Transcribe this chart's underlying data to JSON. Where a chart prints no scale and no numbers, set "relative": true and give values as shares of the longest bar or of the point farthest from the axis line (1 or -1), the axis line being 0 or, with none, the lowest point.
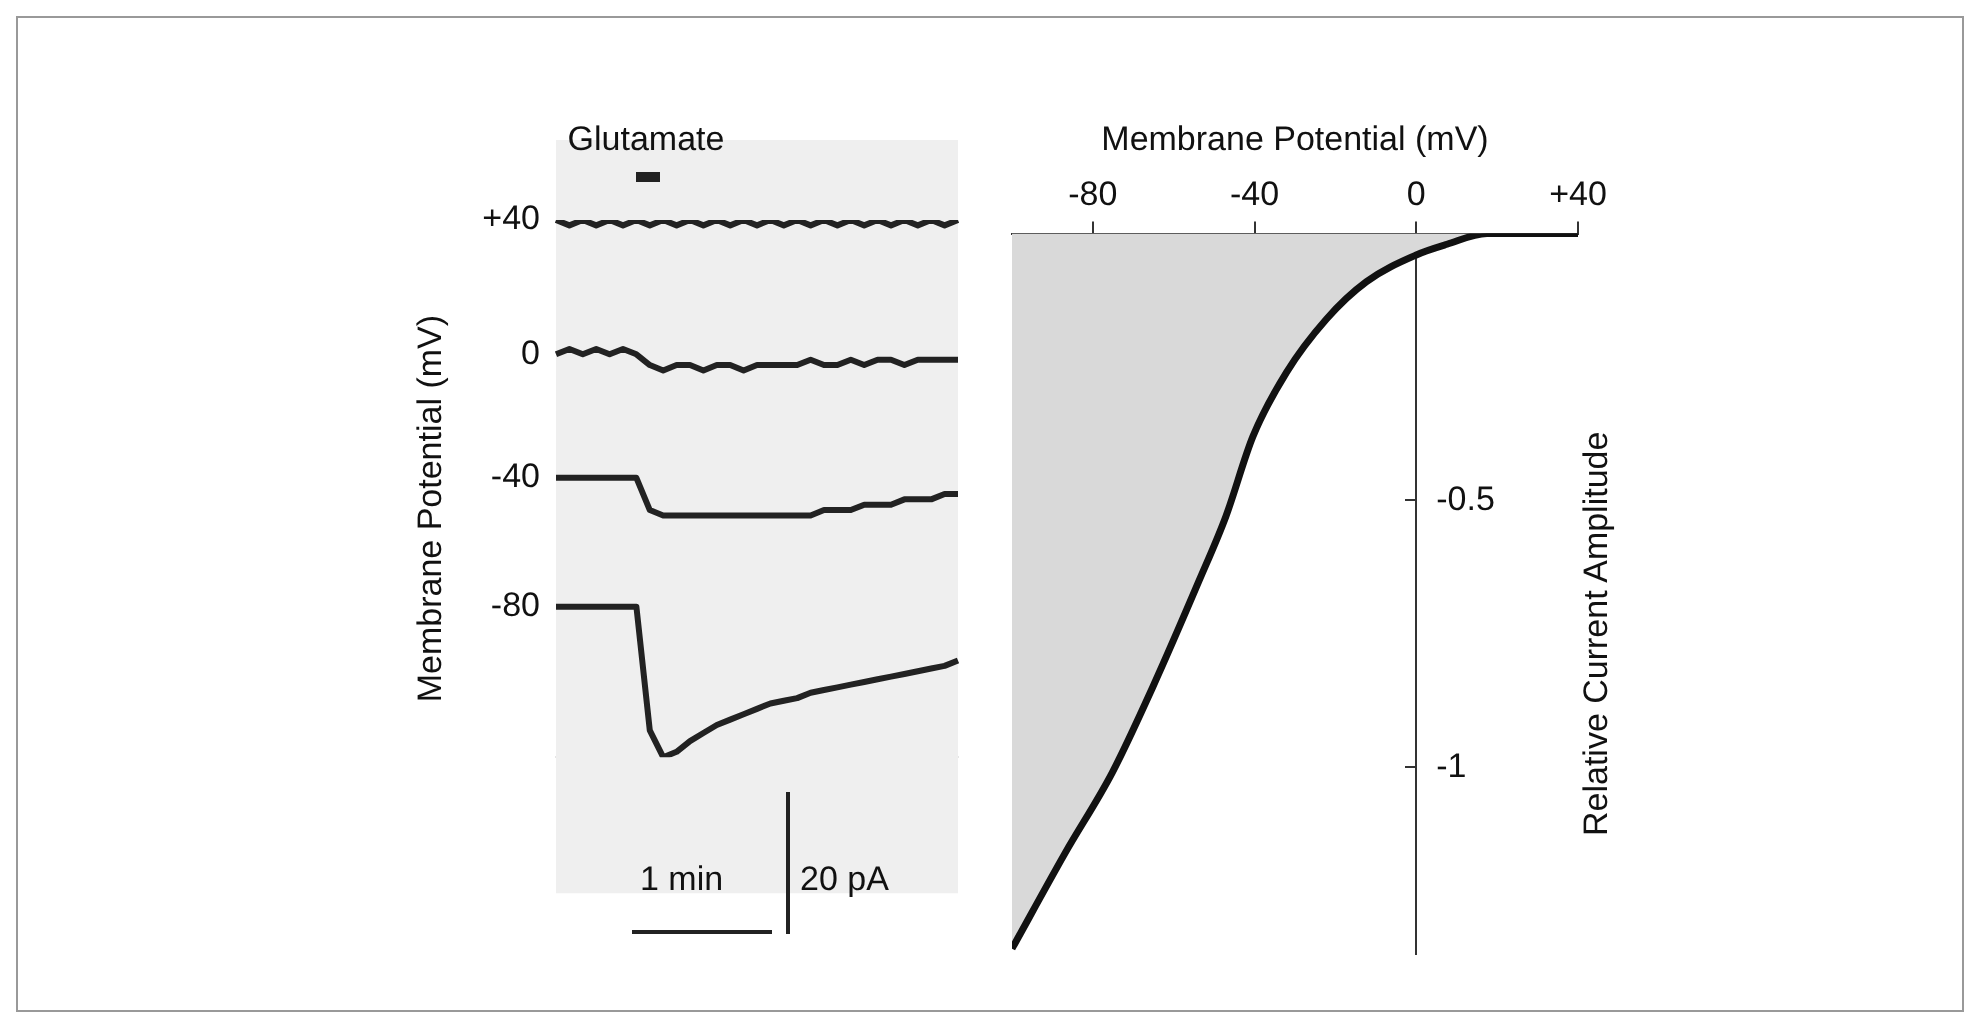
{
  "chart_data": [
    {
      "type": "line",
      "ylabel": "Membrane Potential (mV)",
      "relative": true,
      "categories": [
        null,
        null,
        null,
        null,
        null,
        null,
        null,
        null,
        null,
        null,
        null,
        null,
        null,
        null,
        null,
        null,
        null,
        null,
        null,
        null,
        null,
        null,
        null,
        null,
        null,
        null,
        null,
        null,
        null,
        null,
        null
      ],
      "series": [
        {
          "name": "+40",
          "color": "#222222",
          "values": [
            1,
            0.99,
            1,
            0.99,
            1,
            0.99,
            1,
            0.99,
            1,
            0.99,
            1,
            0.99,
            1,
            0.99,
            1,
            0.99,
            1,
            0.99,
            1,
            0.99,
            1,
            0.99,
            1,
            0.99,
            1,
            0.99,
            1,
            0.99,
            1,
            0.99,
            1
          ]
        },
        {
          "name": "0",
          "color": "#222222",
          "values": [
            0.75,
            0.76,
            0.75,
            0.76,
            0.75,
            0.76,
            0.75,
            0.73,
            0.72,
            0.73,
            0.73,
            0.72,
            0.73,
            0.73,
            0.72,
            0.73,
            0.73,
            0.73,
            0.73,
            0.74,
            0.73,
            0.73,
            0.74,
            0.73,
            0.74,
            0.74,
            0.73,
            0.74,
            0.74,
            0.74,
            0.74
          ]
        },
        {
          "name": "-40",
          "color": "#222222",
          "values": [
            0.52,
            0.52,
            0.52,
            0.52,
            0.52,
            0.52,
            0.52,
            0.46,
            0.45,
            0.45,
            0.45,
            0.45,
            0.45,
            0.45,
            0.45,
            0.45,
            0.45,
            0.45,
            0.45,
            0.45,
            0.46,
            0.46,
            0.46,
            0.47,
            0.47,
            0.47,
            0.48,
            0.48,
            0.48,
            0.49,
            0.49
          ]
        },
        {
          "name": "-80",
          "color": "#222222",
          "values": [
            0.28,
            0.28,
            0.28,
            0.28,
            0.28,
            0.28,
            0.28,
            0.05,
            0,
            0.01,
            0.03,
            0.045,
            0.06,
            0.07,
            0.08,
            0.09,
            0.1,
            0.105,
            0.11,
            0.12,
            0.125,
            0.13,
            0.135,
            0.14,
            0.145,
            0.15,
            0.155,
            0.16,
            0.165,
            0.17,
            0.18
          ]
        }
      ],
      "annotations": [
        "Glutamate",
        "1 min",
        "20 pA"
      ]
    },
    {
      "type": "area",
      "xlabel": "Membrane Potential (mV)",
      "ylabel": "Relative Current Amplitude",
      "color": "#111111",
      "x": [
        -100,
        -86.8,
        -75.2,
        -65.2,
        -53.7,
        -47.1,
        -40.4,
        -32.1,
        -22.2,
        -12.3,
        0,
        7.6,
        17.5,
        40
      ],
      "values": [
        -1.34,
        -1.16,
        -1.01,
        -0.85,
        -0.65,
        -0.53,
        -0.38,
        -0.26,
        -0.16,
        -0.09,
        -0.04,
        -0.02,
        0,
        0
      ],
      "xlim": [
        -100,
        40
      ],
      "xticks": [
        -80,
        -40,
        0,
        {
          "value": 40,
          "label": "+40"
        }
      ],
      "ylim": [
        -1.35,
        0
      ],
      "yticks": [
        -0.5,
        -1
      ]
    }
  ]
}
